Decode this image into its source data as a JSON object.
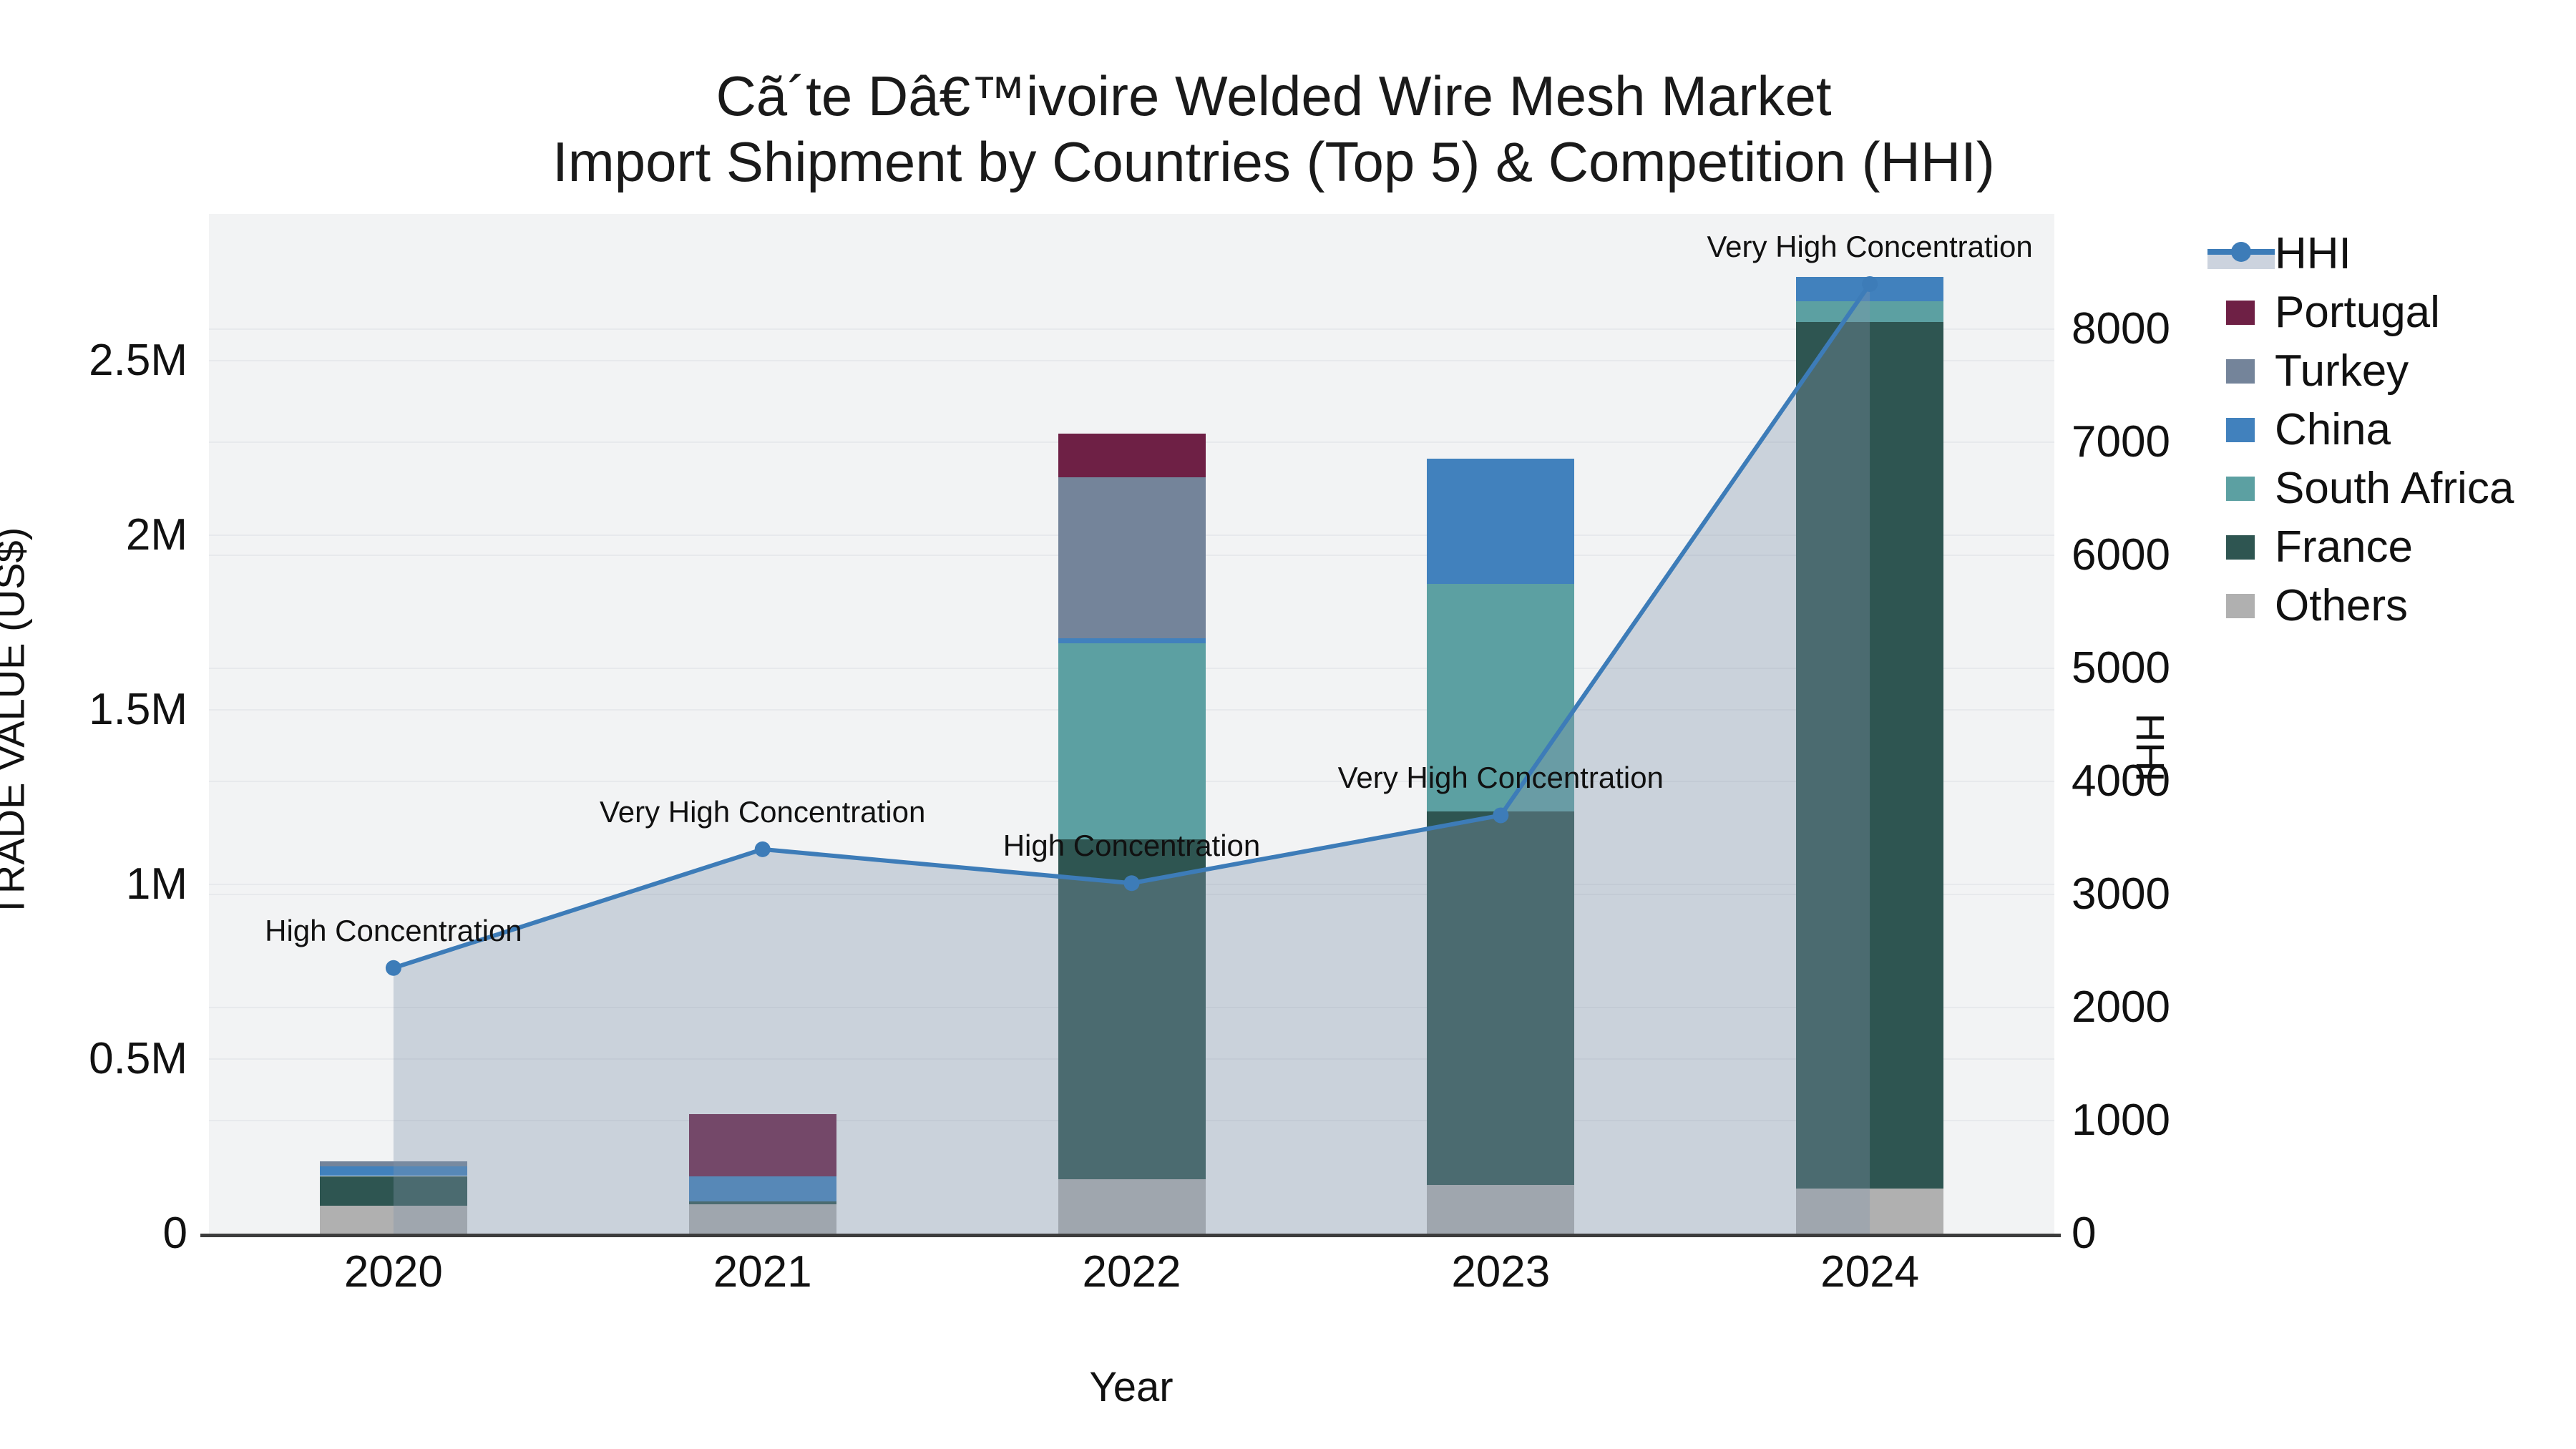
{
  "chart_data": {
    "type": "bar+line",
    "title_line1": "Cã´te Dâ€™ivoire Welded Wire Mesh Market",
    "title_line2": "Import Shipment by Countries (Top 5) & Competition (HHI)",
    "x_label": "Year",
    "categories": [
      "2020",
      "2021",
      "2022",
      "2023",
      "2024"
    ],
    "y_left": {
      "label": "TRADE VALUE (US$)",
      "max": 2920000,
      "ticks": [
        {
          "v": 0,
          "label": "0"
        },
        {
          "v": 500000,
          "label": "0.5M"
        },
        {
          "v": 1000000,
          "label": "1M"
        },
        {
          "v": 1500000,
          "label": "1.5M"
        },
        {
          "v": 2000000,
          "label": "2M"
        },
        {
          "v": 2500000,
          "label": "2.5M"
        }
      ]
    },
    "y_right": {
      "label": "HHI",
      "max": 9020,
      "ticks": [
        {
          "v": 0,
          "label": "0"
        },
        {
          "v": 1000,
          "label": "1000"
        },
        {
          "v": 2000,
          "label": "2000"
        },
        {
          "v": 3000,
          "label": "3000"
        },
        {
          "v": 4000,
          "label": "4000"
        },
        {
          "v": 5000,
          "label": "5000"
        },
        {
          "v": 6000,
          "label": "6000"
        },
        {
          "v": 7000,
          "label": "7000"
        },
        {
          "v": 8000,
          "label": "8000"
        }
      ]
    },
    "bar_series": [
      {
        "name": "Others",
        "color": "#b0b0b0",
        "values": [
          80000,
          85000,
          155000,
          140000,
          130000
        ]
      },
      {
        "name": "France",
        "color": "#2e5551",
        "values": [
          85000,
          8000,
          975000,
          1070000,
          2480000
        ]
      },
      {
        "name": "South Africa",
        "color": "#5ca0a2",
        "values": [
          0,
          0,
          560000,
          650000,
          60000
        ]
      },
      {
        "name": "China",
        "color": "#4181bd",
        "values": [
          28000,
          70000,
          15000,
          360000,
          70000
        ]
      },
      {
        "name": "Turkey",
        "color": "#74849a",
        "values": [
          14000,
          0,
          460000,
          0,
          0
        ]
      },
      {
        "name": "Portugal",
        "color": "#6e2045",
        "values": [
          0,
          180000,
          125000,
          0,
          0
        ]
      }
    ],
    "hhi": {
      "name": "HHI",
      "values": [
        2350,
        3400,
        3100,
        3700,
        8400
      ],
      "line_color": "#3d7cb8",
      "area_color": "rgba(130,148,172,0.35)",
      "annotations": [
        "High Concentration",
        "Very High Concentration",
        "High Concentration",
        "Very High Concentration",
        "Very High Concentration"
      ]
    },
    "legend_order": [
      "HHI",
      "Portugal",
      "Turkey",
      "China",
      "South Africa",
      "France",
      "Others"
    ],
    "style": {
      "plot_bg": "#f2f3f4",
      "grid_color": "#e7e9ec",
      "axis_line_color": "#3d3d3d",
      "text_color": "#111111"
    }
  }
}
